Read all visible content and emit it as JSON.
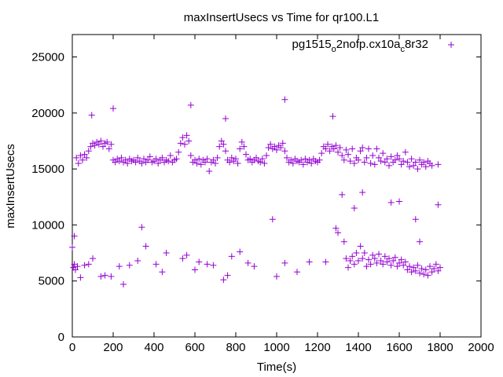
{
  "chart_data": {
    "type": "scatter",
    "title": "maxInsertUsecs vs Time for qr100.L1",
    "xlabel": "Time(s)",
    "ylabel": "maxInsertUsecs",
    "xlim": [
      0,
      2000
    ],
    "ylim": [
      0,
      27000
    ],
    "xticks": [
      0,
      200,
      400,
      600,
      800,
      1000,
      1200,
      1400,
      1600,
      1800,
      2000
    ],
    "yticks": [
      0,
      5000,
      10000,
      15000,
      20000,
      25000
    ],
    "grid": false,
    "legend_position": "top-right",
    "series": [
      {
        "name": "pg1515_o2nofp.cx10a_c8r32",
        "legend_main": "pg1515",
        "legend_parts": [
          [
            "o",
            "2nofp.cx10a"
          ],
          [
            "c",
            "8r32"
          ]
        ],
        "color": "#9400d3",
        "marker": "plus",
        "points": [
          [
            0,
            8000
          ],
          [
            10,
            9000
          ],
          [
            20,
            16000
          ],
          [
            30,
            15500
          ],
          [
            40,
            16200
          ],
          [
            50,
            15800
          ],
          [
            60,
            16300
          ],
          [
            70,
            16000
          ],
          [
            80,
            16600
          ],
          [
            90,
            17000
          ],
          [
            100,
            17300
          ],
          [
            110,
            17100
          ],
          [
            120,
            17400
          ],
          [
            130,
            17200
          ],
          [
            140,
            17500
          ],
          [
            150,
            17000
          ],
          [
            160,
            17300
          ],
          [
            170,
            17400
          ],
          [
            180,
            16800
          ],
          [
            190,
            17200
          ],
          [
            200,
            15800
          ],
          [
            210,
            15600
          ],
          [
            220,
            15900
          ],
          [
            230,
            15700
          ],
          [
            240,
            16000
          ],
          [
            250,
            15600
          ],
          [
            260,
            15800
          ],
          [
            270,
            15500
          ],
          [
            280,
            15900
          ],
          [
            290,
            15700
          ],
          [
            300,
            15800
          ],
          [
            310,
            15600
          ],
          [
            320,
            16000
          ],
          [
            330,
            15700
          ],
          [
            340,
            15500
          ],
          [
            350,
            15900
          ],
          [
            360,
            15600
          ],
          [
            370,
            15800
          ],
          [
            380,
            16100
          ],
          [
            390,
            15600
          ],
          [
            400,
            15700
          ],
          [
            410,
            15900
          ],
          [
            420,
            15500
          ],
          [
            430,
            15800
          ],
          [
            440,
            16000
          ],
          [
            450,
            15600
          ],
          [
            460,
            15800
          ],
          [
            470,
            15700
          ],
          [
            480,
            16200
          ],
          [
            490,
            15600
          ],
          [
            500,
            15800
          ],
          [
            510,
            15900
          ],
          [
            520,
            16500
          ],
          [
            530,
            17300
          ],
          [
            540,
            17800
          ],
          [
            550,
            17200
          ],
          [
            560,
            18000
          ],
          [
            570,
            17500
          ],
          [
            580,
            16200
          ],
          [
            590,
            15600
          ],
          [
            600,
            15800
          ],
          [
            610,
            15500
          ],
          [
            620,
            15900
          ],
          [
            630,
            15400
          ],
          [
            640,
            15800
          ],
          [
            650,
            15600
          ],
          [
            660,
            15900
          ],
          [
            670,
            14800
          ],
          [
            680,
            15600
          ],
          [
            690,
            15800
          ],
          [
            700,
            15500
          ],
          [
            710,
            16000
          ],
          [
            720,
            17000
          ],
          [
            730,
            17500
          ],
          [
            740,
            17200
          ],
          [
            750,
            16600
          ],
          [
            760,
            15800
          ],
          [
            770,
            15600
          ],
          [
            780,
            16000
          ],
          [
            790,
            15700
          ],
          [
            800,
            15900
          ],
          [
            810,
            15500
          ],
          [
            820,
            16800
          ],
          [
            830,
            17400
          ],
          [
            840,
            17000
          ],
          [
            850,
            16300
          ],
          [
            860,
            15800
          ],
          [
            870,
            15900
          ],
          [
            880,
            15600
          ],
          [
            890,
            15800
          ],
          [
            900,
            16000
          ],
          [
            910,
            15700
          ],
          [
            920,
            15600
          ],
          [
            930,
            15900
          ],
          [
            940,
            15500
          ],
          [
            950,
            16200
          ],
          [
            960,
            16900
          ],
          [
            970,
            17200
          ],
          [
            980,
            16800
          ],
          [
            990,
            17000
          ],
          [
            1000,
            16700
          ],
          [
            1010,
            17100
          ],
          [
            1020,
            16900
          ],
          [
            1030,
            17300
          ],
          [
            1040,
            16600
          ],
          [
            1050,
            16000
          ],
          [
            1060,
            15600
          ],
          [
            1070,
            15800
          ],
          [
            1080,
            15500
          ],
          [
            1090,
            15900
          ],
          [
            1100,
            15700
          ],
          [
            1110,
            15600
          ],
          [
            1120,
            15800
          ],
          [
            1130,
            15400
          ],
          [
            1140,
            15900
          ],
          [
            1150,
            15600
          ],
          [
            1160,
            15800
          ],
          [
            1170,
            15500
          ],
          [
            1180,
            15900
          ],
          [
            1190,
            15700
          ],
          [
            1200,
            15600
          ],
          [
            1210,
            15800
          ],
          [
            1220,
            16400
          ],
          [
            1230,
            17000
          ],
          [
            1240,
            16800
          ],
          [
            1250,
            17200
          ],
          [
            1260,
            16600
          ],
          [
            1270,
            17000
          ],
          [
            1280,
            16800
          ],
          [
            1290,
            17100
          ],
          [
            1300,
            16500
          ],
          [
            1310,
            16900
          ],
          [
            1320,
            16200
          ],
          [
            1330,
            15800
          ],
          [
            1340,
            16700
          ],
          [
            1350,
            16300
          ],
          [
            1360,
            15700
          ],
          [
            1370,
            16800
          ],
          [
            1380,
            15500
          ],
          [
            1390,
            16000
          ],
          [
            1400,
            15800
          ],
          [
            1410,
            16600
          ],
          [
            1420,
            16900
          ],
          [
            1430,
            15600
          ],
          [
            1440,
            16000
          ],
          [
            1450,
            16800
          ],
          [
            1460,
            15500
          ],
          [
            1470,
            16200
          ],
          [
            1480,
            15400
          ],
          [
            1490,
            16800
          ],
          [
            1500,
            16000
          ],
          [
            1510,
            15700
          ],
          [
            1520,
            16400
          ],
          [
            1530,
            15600
          ],
          [
            1540,
            15900
          ],
          [
            1550,
            15300
          ],
          [
            1560,
            16100
          ],
          [
            1570,
            15600
          ],
          [
            1580,
            15800
          ],
          [
            1590,
            16200
          ],
          [
            1600,
            15900
          ],
          [
            1610,
            15400
          ],
          [
            1620,
            15700
          ],
          [
            1630,
            16500
          ],
          [
            1640,
            15600
          ],
          [
            1650,
            15200
          ],
          [
            1660,
            15900
          ],
          [
            1670,
            15300
          ],
          [
            1680,
            15600
          ],
          [
            1690,
            15000
          ],
          [
            1700,
            15800
          ],
          [
            1710,
            15400
          ],
          [
            1720,
            15600
          ],
          [
            1730,
            15200
          ],
          [
            1740,
            15700
          ],
          [
            1750,
            15500
          ],
          [
            1760,
            15300
          ],
          [
            1790,
            15400
          ],
          [
            5,
            6200
          ],
          [
            10,
            6500
          ],
          [
            15,
            6000
          ],
          [
            25,
            6300
          ],
          [
            40,
            5300
          ],
          [
            60,
            6400
          ],
          [
            80,
            6500
          ],
          [
            100,
            7000
          ],
          [
            140,
            5400
          ],
          [
            160,
            5500
          ],
          [
            190,
            5400
          ],
          [
            230,
            6300
          ],
          [
            250,
            4700
          ],
          [
            280,
            6400
          ],
          [
            320,
            6800
          ],
          [
            340,
            9800
          ],
          [
            360,
            8100
          ],
          [
            410,
            6500
          ],
          [
            440,
            5800
          ],
          [
            460,
            7500
          ],
          [
            540,
            7000
          ],
          [
            560,
            7300
          ],
          [
            600,
            6000
          ],
          [
            620,
            6700
          ],
          [
            660,
            6500
          ],
          [
            690,
            6400
          ],
          [
            740,
            5100
          ],
          [
            760,
            5500
          ],
          [
            780,
            7200
          ],
          [
            820,
            7600
          ],
          [
            860,
            6600
          ],
          [
            890,
            6300
          ],
          [
            980,
            10500
          ],
          [
            1000,
            5400
          ],
          [
            1040,
            6600
          ],
          [
            1100,
            5800
          ],
          [
            1160,
            6700
          ],
          [
            1240,
            6700
          ],
          [
            1290,
            9700
          ],
          [
            1300,
            9300
          ],
          [
            1320,
            12700
          ],
          [
            1330,
            8500
          ],
          [
            1340,
            7000
          ],
          [
            1350,
            6200
          ],
          [
            1360,
            6800
          ],
          [
            1370,
            7200
          ],
          [
            1380,
            6500
          ],
          [
            1390,
            7500
          ],
          [
            1400,
            6800
          ],
          [
            1410,
            8100
          ],
          [
            1420,
            7000
          ],
          [
            1430,
            7500
          ],
          [
            1440,
            6300
          ],
          [
            1450,
            6900
          ],
          [
            1460,
            6500
          ],
          [
            1470,
            7300
          ],
          [
            1480,
            7000
          ],
          [
            1490,
            6600
          ],
          [
            1500,
            7400
          ],
          [
            1510,
            6800
          ],
          [
            1520,
            6500
          ],
          [
            1530,
            7200
          ],
          [
            1540,
            6700
          ],
          [
            1550,
            7000
          ],
          [
            1560,
            6400
          ],
          [
            1570,
            6800
          ],
          [
            1580,
            7100
          ],
          [
            1590,
            6300
          ],
          [
            1600,
            6600
          ],
          [
            1610,
            6900
          ],
          [
            1620,
            6400
          ],
          [
            1630,
            6700
          ],
          [
            1640,
            6000
          ],
          [
            1650,
            6300
          ],
          [
            1660,
            5800
          ],
          [
            1670,
            6200
          ],
          [
            1680,
            5900
          ],
          [
            1690,
            6400
          ],
          [
            1700,
            5700
          ],
          [
            1710,
            6100
          ],
          [
            1720,
            5600
          ],
          [
            1730,
            6000
          ],
          [
            1740,
            5500
          ],
          [
            1750,
            6300
          ],
          [
            1760,
            5800
          ],
          [
            1770,
            6100
          ],
          [
            1780,
            6500
          ],
          [
            1790,
            5900
          ],
          [
            1800,
            6200
          ],
          [
            95,
            19800
          ],
          [
            200,
            20400
          ],
          [
            580,
            20700
          ],
          [
            750,
            19500
          ],
          [
            1040,
            21200
          ],
          [
            1275,
            19700
          ],
          [
            1560,
            12000
          ],
          [
            1600,
            12100
          ],
          [
            1700,
            8500
          ],
          [
            1790,
            11800
          ],
          [
            1420,
            12900
          ],
          [
            1380,
            11500
          ],
          [
            1680,
            10500
          ]
        ]
      }
    ]
  }
}
